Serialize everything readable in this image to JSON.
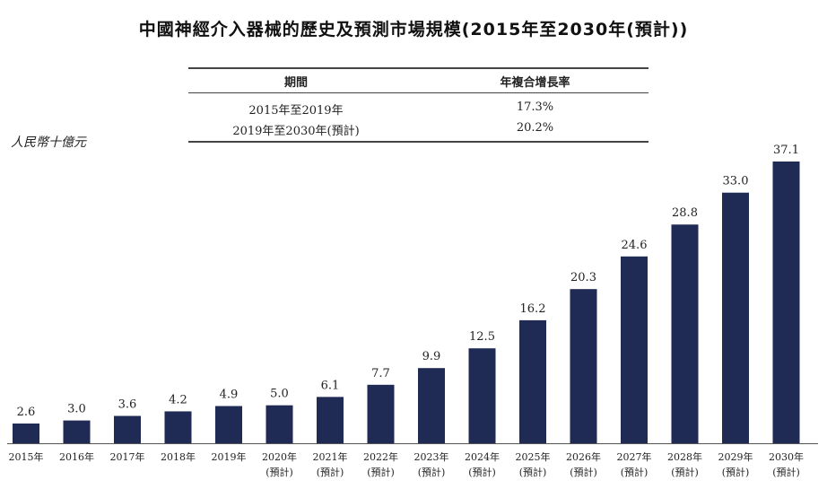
{
  "title": "中國神經介入器械的歷史及預測市場規模(2015年至2030年(預計))",
  "cagr_table": {
    "headers": [
      "期間",
      "年複合增長率"
    ],
    "rows": [
      {
        "period": "2015年至2019年",
        "cagr": "17.3%"
      },
      {
        "period": "2019年至2030年(預計)",
        "cagr": "20.2%"
      }
    ]
  },
  "colors": {
    "bar": "#1f2a55",
    "axis": "#555555"
  },
  "chart_data": {
    "type": "bar",
    "ylabel": "人民幣十億元",
    "categories": [
      "2015年",
      "2016年",
      "2017年",
      "2018年",
      "2019年",
      "2020年\n(預計)",
      "2021年\n(預計)",
      "2022年\n(預計)",
      "2023年\n(預計)",
      "2024年\n(預計)",
      "2025年\n(預計)",
      "2026年\n(預計)",
      "2027年\n(預計)",
      "2028年\n(預計)",
      "2029年\n(預計)",
      "2030年\n(預計)"
    ],
    "values": [
      2.6,
      3.0,
      3.6,
      4.2,
      4.9,
      5.0,
      6.1,
      7.7,
      9.9,
      12.5,
      16.2,
      20.3,
      24.6,
      28.8,
      33.0,
      37.1
    ],
    "value_labels": [
      "2.6",
      "3.0",
      "3.6",
      "4.2",
      "4.9",
      "5.0",
      "6.1",
      "7.7",
      "9.9",
      "12.5",
      "16.2",
      "20.3",
      "24.6",
      "28.8",
      "33.0",
      "37.1"
    ],
    "ylim": [
      0,
      37.1
    ],
    "grid": false,
    "legend": "none"
  }
}
